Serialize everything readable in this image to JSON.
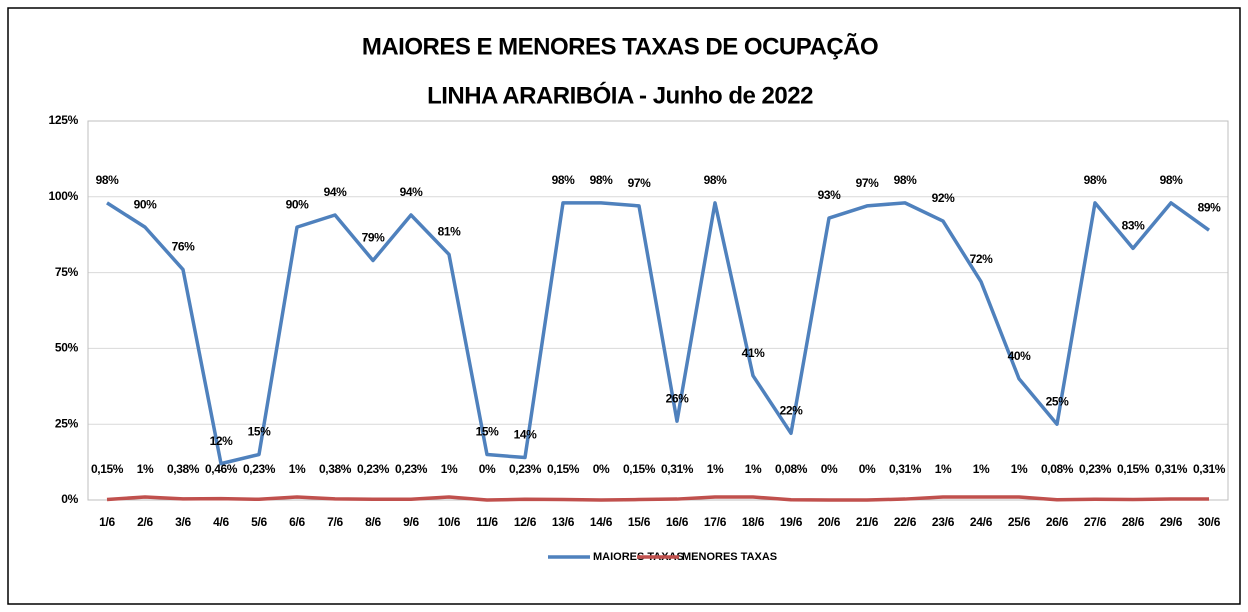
{
  "chart_data": {
    "type": "line",
    "title": "MAIORES E MENORES TAXAS DE OCUPAÇÃO",
    "subtitle": "LINHA ARARIBÓIA - Junho de 2022",
    "categories": [
      "1/6",
      "2/6",
      "3/6",
      "4/6",
      "5/6",
      "6/6",
      "7/6",
      "8/6",
      "9/6",
      "10/6",
      "11/6",
      "12/6",
      "13/6",
      "14/6",
      "15/6",
      "16/6",
      "17/6",
      "18/6",
      "19/6",
      "20/6",
      "21/6",
      "22/6",
      "23/6",
      "24/6",
      "25/6",
      "26/6",
      "27/6",
      "28/6",
      "29/6",
      "30/6"
    ],
    "series": [
      {
        "name": "MAIORES TAXAS",
        "color": "#4f81bd",
        "values": [
          98,
          90,
          76,
          12,
          15,
          90,
          94,
          79,
          94,
          81,
          15,
          14,
          98,
          98,
          97,
          26,
          98,
          41,
          22,
          93,
          97,
          98,
          92,
          72,
          40,
          25,
          98,
          83,
          98,
          89
        ],
        "value_labels": [
          "98%",
          "90%",
          "76%",
          "12%",
          "15%",
          "90%",
          "94%",
          "79%",
          "94%",
          "81%",
          "15%",
          "14%",
          "98%",
          "98%",
          "97%",
          "26%",
          "98%",
          "41%",
          "22%",
          "93%",
          "97%",
          "98%",
          "92%",
          "72%",
          "40%",
          "25%",
          "98%",
          "83%",
          "98%",
          "89%"
        ]
      },
      {
        "name": "MENORES TAXAS",
        "color": "#c0504d",
        "values": [
          0.15,
          1,
          0.38,
          0.46,
          0.23,
          1,
          0.38,
          0.23,
          0.23,
          1,
          0,
          0.23,
          0.15,
          0,
          0.15,
          0.31,
          1,
          1,
          0.08,
          0,
          0,
          0.31,
          1,
          1,
          1,
          0.08,
          0.23,
          0.15,
          0.31,
          0.31
        ],
        "value_labels": [
          "0,15%",
          "1%",
          "0,38%",
          "0,46%",
          "0,23%",
          "1%",
          "0,38%",
          "0,23%",
          "0,23%",
          "1%",
          "0%",
          "0,23%",
          "0,15%",
          "0%",
          "0,15%",
          "0,31%",
          "1%",
          "1%",
          "0,08%",
          "0%",
          "0%",
          "0,31%",
          "1%",
          "1%",
          "1%",
          "0,08%",
          "0,23%",
          "0,15%",
          "0,31%",
          "0,31%"
        ]
      }
    ],
    "ylim": [
      0,
      125
    ],
    "yticks": [
      {
        "value": 0,
        "label": "0%"
      },
      {
        "value": 25,
        "label": "25%"
      },
      {
        "value": 50,
        "label": "50%"
      },
      {
        "value": 75,
        "label": "75%"
      },
      {
        "value": 100,
        "label": "100%"
      },
      {
        "value": 125,
        "label": "125%"
      }
    ],
    "grid": true,
    "legend": "bottom"
  }
}
